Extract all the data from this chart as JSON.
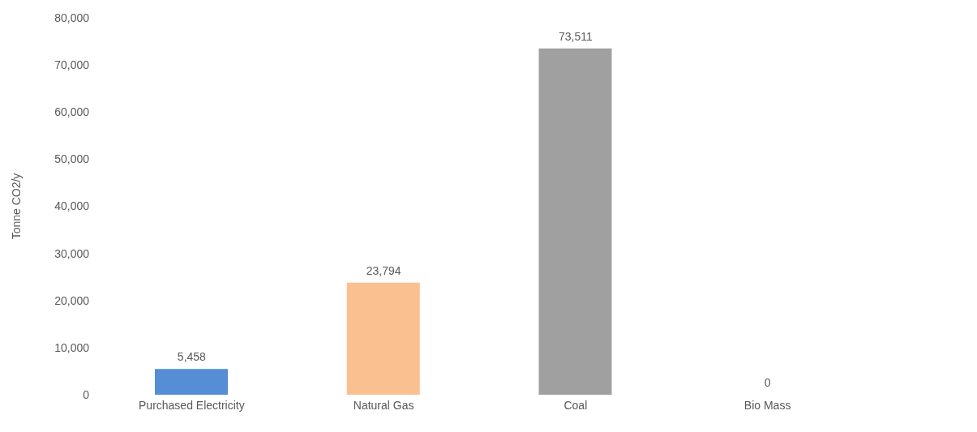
{
  "chart_data": {
    "type": "bar",
    "ylabel": "Tonne CO2/y",
    "categories": [
      "Purchased Electricity",
      "Natural Gas",
      "Coal",
      "Bio Mass"
    ],
    "values": [
      5458,
      23794,
      73511,
      0
    ],
    "value_labels": [
      "5,458",
      "23,794",
      "73,511",
      "0"
    ],
    "colors": [
      "#558ed5",
      "#fac090",
      "#a0a0a0",
      "#7f7f7f"
    ],
    "ylim": [
      0,
      80000
    ],
    "yticks": [
      0,
      {
        "value": 10000,
        "label": "10,000"
      },
      {
        "value": 20000,
        "label": "20,000"
      },
      {
        "value": 30000,
        "label": "30,000"
      },
      {
        "value": 40000,
        "label": "40,000"
      },
      {
        "value": 50000,
        "label": "50,000"
      },
      {
        "value": 60000,
        "label": "60,000"
      },
      {
        "value": 70000,
        "label": "70,000"
      },
      {
        "value": 80000,
        "label": "80,000"
      }
    ],
    "grid": false
  }
}
